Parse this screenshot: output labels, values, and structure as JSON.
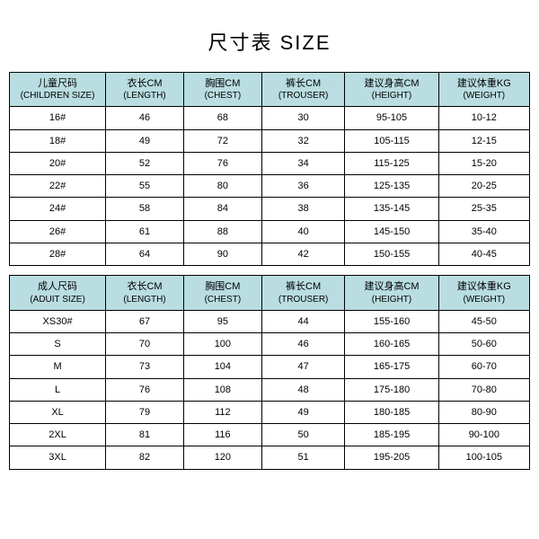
{
  "title": "尺寸表 SIZE",
  "header_bg": "#b9dde0",
  "col_widths": [
    "18.5%",
    "15%",
    "15%",
    "16%",
    "18%",
    "17.5%"
  ],
  "children": {
    "columns": [
      {
        "cn": "儿童尺码",
        "en": "(CHILDREN SIZE)"
      },
      {
        "cn": "衣长CM",
        "en": "(LENGTH)"
      },
      {
        "cn": "胸围CM",
        "en": "(CHEST)"
      },
      {
        "cn": "裤长CM",
        "en": "(TROUSER)"
      },
      {
        "cn": "建议身高CM",
        "en": "(HEIGHT)"
      },
      {
        "cn": "建议体重KG",
        "en": "(WEIGHT)"
      }
    ],
    "rows": [
      [
        "16#",
        "46",
        "68",
        "30",
        "95-105",
        "10-12"
      ],
      [
        "18#",
        "49",
        "72",
        "32",
        "105-115",
        "12-15"
      ],
      [
        "20#",
        "52",
        "76",
        "34",
        "115-125",
        "15-20"
      ],
      [
        "22#",
        "55",
        "80",
        "36",
        "125-135",
        "20-25"
      ],
      [
        "24#",
        "58",
        "84",
        "38",
        "135-145",
        "25-35"
      ],
      [
        "26#",
        "61",
        "88",
        "40",
        "145-150",
        "35-40"
      ],
      [
        "28#",
        "64",
        "90",
        "42",
        "150-155",
        "40-45"
      ]
    ]
  },
  "adult": {
    "columns": [
      {
        "cn": "成人尺码",
        "en": "(ADUIT SIZE)"
      },
      {
        "cn": "衣长CM",
        "en": "(LENGTH)"
      },
      {
        "cn": "胸围CM",
        "en": "(CHEST)"
      },
      {
        "cn": "裤长CM",
        "en": "(TROUSER)"
      },
      {
        "cn": "建议身高CM",
        "en": "(HEIGHT)"
      },
      {
        "cn": "建议体重KG",
        "en": "(WEIGHT)"
      }
    ],
    "rows": [
      [
        "XS30#",
        "67",
        "95",
        "44",
        "155-160",
        "45-50"
      ],
      [
        "S",
        "70",
        "100",
        "46",
        "160-165",
        "50-60"
      ],
      [
        "M",
        "73",
        "104",
        "47",
        "165-175",
        "60-70"
      ],
      [
        "L",
        "76",
        "108",
        "48",
        "175-180",
        "70-80"
      ],
      [
        "XL",
        "79",
        "112",
        "49",
        "180-185",
        "80-90"
      ],
      [
        "2XL",
        "81",
        "116",
        "50",
        "185-195",
        "90-100"
      ],
      [
        "3XL",
        "82",
        "120",
        "51",
        "195-205",
        "100-105"
      ]
    ]
  }
}
